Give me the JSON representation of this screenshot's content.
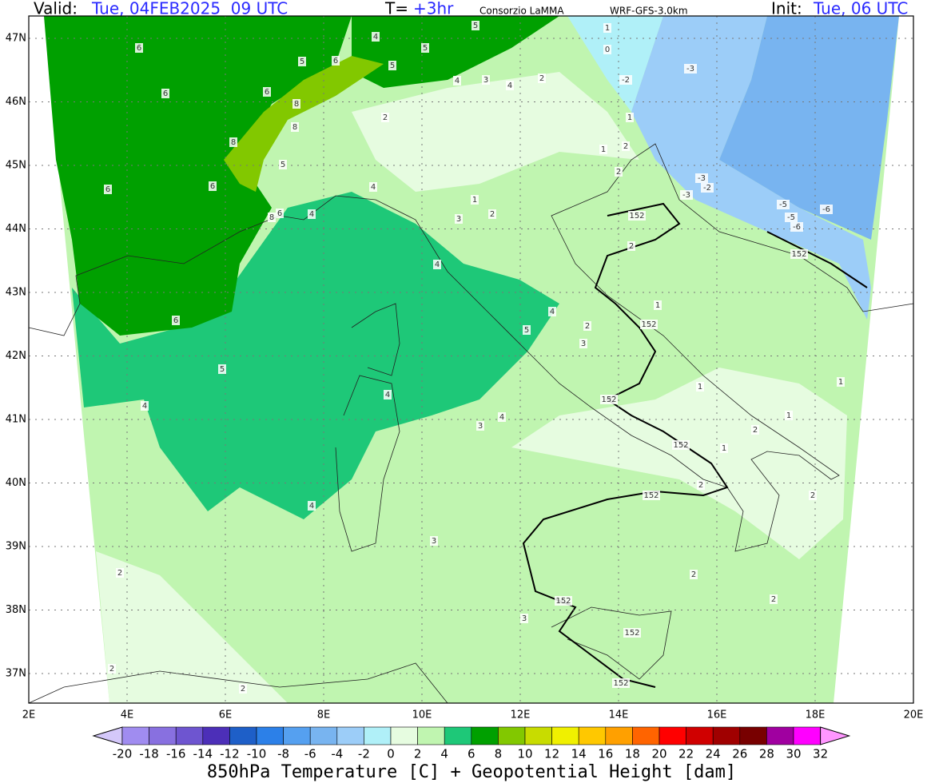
{
  "header": {
    "valid_label": "Valid:",
    "valid_time": "Tue, 04FEB2025  09 UTC",
    "lead_label": "T=",
    "lead": "+3hr",
    "source": "Consorzio LaMMA",
    "model": "WRF-GFS-3.0km",
    "init_label": "Init:",
    "init": "Tue, 06 UTC"
  },
  "map": {
    "lat_labels": [
      "47N",
      "46N",
      "45N",
      "44N",
      "43N",
      "42N",
      "41N",
      "40N",
      "39N",
      "38N",
      "37N"
    ],
    "lon_labels": [
      "2E",
      "4E",
      "6E",
      "8E",
      "10E",
      "12E",
      "14E",
      "16E",
      "18E",
      "20E"
    ],
    "contour_labels": [
      6,
      6,
      6,
      6,
      6,
      5,
      4,
      4,
      5,
      6,
      5,
      5,
      4,
      5,
      4,
      3,
      4,
      2,
      6,
      8,
      8,
      8,
      5,
      4,
      4,
      6,
      8,
      2,
      1,
      3,
      2,
      4,
      4,
      5,
      2,
      3,
      3,
      4,
      4,
      3,
      2,
      2,
      2,
      3,
      152,
      152,
      152,
      152,
      152,
      152,
      152,
      152,
      1,
      0,
      -2,
      -3,
      -3,
      -2,
      -3,
      -5,
      -5,
      -6,
      -6,
      152,
      2,
      1,
      1,
      1,
      1,
      2,
      1,
      2,
      2,
      2,
      2,
      1,
      2,
      2,
      1
    ]
  },
  "colorbar": {
    "ticks": [
      -20,
      -18,
      -16,
      -14,
      -12,
      -10,
      -8,
      -6,
      -4,
      -2,
      0,
      2,
      4,
      6,
      8,
      10,
      12,
      14,
      16,
      18,
      20,
      22,
      24,
      26,
      28,
      30,
      32
    ],
    "colors": [
      "#d4c8fa",
      "#a08cf0",
      "#8870e0",
      "#6e55d0",
      "#4c2fb8",
      "#1e5fc8",
      "#2c80e8",
      "#55a0f0",
      "#78b4f0",
      "#9ccdf8",
      "#b0f0f8",
      "#e6fce0",
      "#c0f5b0",
      "#1ec878",
      "#00a000",
      "#82c800",
      "#c8dc00",
      "#f0f000",
      "#ffc800",
      "#ffa000",
      "#ff6400",
      "#ff0000",
      "#d00000",
      "#a00000",
      "#780000",
      "#a000a0",
      "#ff00ff",
      "#ff96ff"
    ]
  },
  "footer": {
    "title": "850hPa Temperature [C] + Geopotential Height [dam]"
  }
}
